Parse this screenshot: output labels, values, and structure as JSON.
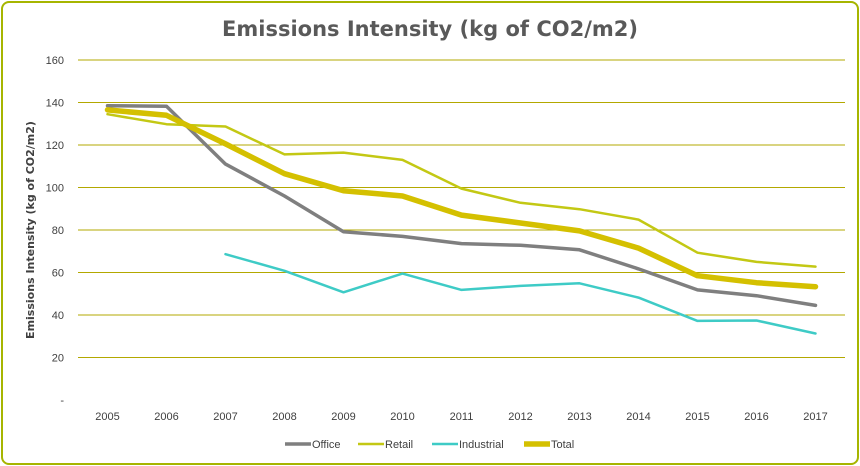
{
  "chart_data": {
    "type": "line",
    "title": "Emissions Intensity (kg of CO2/m2)",
    "xlabel": "",
    "ylabel": "Emissions Intensity (kg of CO2/m2)",
    "categories": [
      "2005",
      "2006",
      "2007",
      "2008",
      "2009",
      "2010",
      "2011",
      "2012",
      "2013",
      "2014",
      "2015",
      "2016",
      "2017"
    ],
    "ylim": [
      0,
      160
    ],
    "yticks": [
      0,
      20,
      40,
      60,
      80,
      100,
      120,
      140,
      160
    ],
    "ytick_labels": [
      "-",
      "20",
      "40",
      "60",
      "80",
      "100",
      "120",
      "140",
      "160"
    ],
    "grid": true,
    "legend_position": "bottom",
    "series": [
      {
        "name": "Office",
        "color": "#7f7f7f",
        "values": [
          138.5,
          138.2,
          111,
          96,
          79.2,
          77,
          73.6,
          72.8,
          70.7,
          61.7,
          51.8,
          49.1,
          44.5
        ]
      },
      {
        "name": "Retail",
        "color": "#c3c814",
        "values": [
          134.5,
          129.8,
          128.7,
          115.6,
          116.4,
          113,
          99.5,
          92.8,
          89.8,
          84.9,
          69.3,
          65,
          62.8
        ]
      },
      {
        "name": "Industrial",
        "color": "#3ecbc6",
        "values": [
          null,
          null,
          68.6,
          60.8,
          50.7,
          59.5,
          51.8,
          53.7,
          54.9,
          48.2,
          37.2,
          37.4,
          31.3
        ]
      },
      {
        "name": "Total",
        "color": "#d4c000",
        "values": [
          136.5,
          134,
          120.5,
          106.5,
          98.5,
          96,
          87,
          83.3,
          79.6,
          71.5,
          58.5,
          55.2,
          53.3
        ]
      }
    ]
  }
}
